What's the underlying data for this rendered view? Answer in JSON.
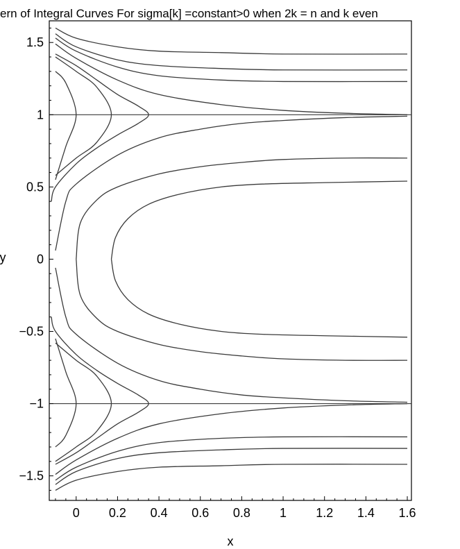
{
  "chart_data": {
    "type": "line",
    "title": "ern of Integral Curves For sigma[k] =constant>0 when 2k =  n and k even",
    "xlabel": "x",
    "ylabel": "y",
    "xlim": [
      -0.13,
      1.62
    ],
    "ylim": [
      -1.67,
      1.65
    ],
    "x_ticks": [
      {
        "value": 0,
        "label": "0"
      },
      {
        "value": 0.2,
        "label": "0.2"
      },
      {
        "value": 0.4,
        "label": "0.4"
      },
      {
        "value": 0.6,
        "label": "0.6"
      },
      {
        "value": 0.8,
        "label": "0.8"
      },
      {
        "value": 1,
        "label": "1"
      },
      {
        "value": 1.2,
        "label": "1.2"
      },
      {
        "value": 1.4,
        "label": "1.4"
      },
      {
        "value": 1.6,
        "label": "1.6"
      }
    ],
    "y_ticks": [
      {
        "value": 1.5,
        "label": "1.5"
      },
      {
        "value": 1,
        "label": "1"
      },
      {
        "value": 0.5,
        "label": "0.5"
      },
      {
        "value": 0,
        "label": "0"
      },
      {
        "value": -0.5,
        "label": "−0.5"
      },
      {
        "value": -1,
        "label": "−1"
      },
      {
        "value": -1.5,
        "label": "−1.5"
      }
    ],
    "horizontal_lines": [
      1,
      -1
    ],
    "line_color": "#3a3a3a",
    "series": [
      {
        "points": [
          [
            -0.1,
            1.6
          ],
          [
            0.0,
            1.53
          ],
          [
            0.2,
            1.47
          ],
          [
            0.4,
            1.44
          ],
          [
            0.7,
            1.43
          ],
          [
            1.0,
            1.42
          ],
          [
            1.6,
            1.42
          ]
        ]
      },
      {
        "points": [
          [
            -0.1,
            1.56
          ],
          [
            0.0,
            1.47
          ],
          [
            0.2,
            1.38
          ],
          [
            0.4,
            1.34
          ],
          [
            0.7,
            1.32
          ],
          [
            1.0,
            1.31
          ],
          [
            1.6,
            1.31
          ]
        ]
      },
      {
        "points": [
          [
            -0.1,
            1.53
          ],
          [
            0.0,
            1.44
          ],
          [
            0.2,
            1.33
          ],
          [
            0.4,
            1.27
          ],
          [
            0.7,
            1.24
          ],
          [
            1.0,
            1.23
          ],
          [
            1.6,
            1.23
          ]
        ]
      },
      {
        "points": [
          [
            -0.1,
            1.49
          ],
          [
            0.0,
            1.39
          ],
          [
            0.2,
            1.24
          ],
          [
            0.4,
            1.14
          ],
          [
            0.7,
            1.07
          ],
          [
            1.0,
            1.03
          ],
          [
            1.3,
            1.01
          ],
          [
            1.6,
            1.0
          ]
        ]
      },
      {
        "points": [
          [
            -0.1,
            1.42
          ],
          [
            0.0,
            1.34
          ],
          [
            0.1,
            1.24
          ],
          [
            0.2,
            1.14
          ],
          [
            0.3,
            1.06
          ],
          [
            0.35,
            1.0
          ],
          [
            0.3,
            0.94
          ],
          [
            0.2,
            0.86
          ],
          [
            0.1,
            0.77
          ],
          [
            0.0,
            0.66
          ],
          [
            -0.1,
            0.5
          ],
          [
            -0.12,
            0.4
          ]
        ]
      },
      {
        "points": [
          [
            -0.1,
            1.4
          ],
          [
            0.0,
            1.3
          ],
          [
            0.1,
            1.19
          ],
          [
            0.17,
            1.0
          ],
          [
            0.1,
            0.81
          ],
          [
            0.0,
            0.7
          ],
          [
            -0.1,
            0.58
          ]
        ]
      },
      {
        "points": [
          [
            -0.1,
            1.3
          ],
          [
            -0.05,
            1.22
          ],
          [
            0.0,
            1.0
          ],
          [
            -0.05,
            0.78
          ],
          [
            -0.1,
            0.55
          ]
        ]
      },
      {
        "points": [
          [
            -0.1,
            0.06
          ],
          [
            -0.05,
            0.4
          ],
          [
            0.0,
            0.52
          ],
          [
            0.2,
            0.72
          ],
          [
            0.4,
            0.84
          ],
          [
            0.6,
            0.9
          ],
          [
            0.8,
            0.94
          ],
          [
            1.0,
            0.96
          ],
          [
            1.3,
            0.98
          ],
          [
            1.6,
            0.99
          ]
        ]
      },
      {
        "points": [
          [
            0.0,
            0.0
          ],
          [
            0.02,
            0.25
          ],
          [
            0.1,
            0.41
          ],
          [
            0.2,
            0.5
          ],
          [
            0.4,
            0.59
          ],
          [
            0.6,
            0.64
          ],
          [
            0.8,
            0.67
          ],
          [
            1.0,
            0.69
          ],
          [
            1.3,
            0.7
          ],
          [
            1.6,
            0.7
          ]
        ]
      },
      {
        "points": [
          [
            0.17,
            0.0
          ],
          [
            0.19,
            0.15
          ],
          [
            0.25,
            0.28
          ],
          [
            0.35,
            0.38
          ],
          [
            0.5,
            0.45
          ],
          [
            0.7,
            0.5
          ],
          [
            0.9,
            0.52
          ],
          [
            1.2,
            0.53
          ],
          [
            1.6,
            0.54
          ]
        ]
      },
      {
        "points": [
          [
            -0.1,
            -0.06
          ],
          [
            -0.05,
            -0.4
          ],
          [
            0.0,
            -0.52
          ],
          [
            0.2,
            -0.72
          ],
          [
            0.4,
            -0.84
          ],
          [
            0.6,
            -0.9
          ],
          [
            0.8,
            -0.94
          ],
          [
            1.0,
            -0.96
          ],
          [
            1.3,
            -0.98
          ],
          [
            1.6,
            -0.99
          ]
        ]
      },
      {
        "points": [
          [
            0.0,
            0.0
          ],
          [
            0.02,
            -0.25
          ],
          [
            0.1,
            -0.41
          ],
          [
            0.2,
            -0.5
          ],
          [
            0.4,
            -0.59
          ],
          [
            0.6,
            -0.64
          ],
          [
            0.8,
            -0.67
          ],
          [
            1.0,
            -0.69
          ],
          [
            1.3,
            -0.7
          ],
          [
            1.6,
            -0.7
          ]
        ]
      },
      {
        "points": [
          [
            0.17,
            0.0
          ],
          [
            0.19,
            -0.15
          ],
          [
            0.25,
            -0.28
          ],
          [
            0.35,
            -0.38
          ],
          [
            0.5,
            -0.45
          ],
          [
            0.7,
            -0.5
          ],
          [
            0.9,
            -0.52
          ],
          [
            1.2,
            -0.53
          ],
          [
            1.6,
            -0.54
          ]
        ]
      },
      {
        "points": [
          [
            -0.1,
            -1.6
          ],
          [
            0.0,
            -1.53
          ],
          [
            0.2,
            -1.47
          ],
          [
            0.4,
            -1.44
          ],
          [
            0.7,
            -1.43
          ],
          [
            1.0,
            -1.42
          ],
          [
            1.6,
            -1.42
          ]
        ]
      },
      {
        "points": [
          [
            -0.1,
            -1.56
          ],
          [
            0.0,
            -1.47
          ],
          [
            0.2,
            -1.38
          ],
          [
            0.4,
            -1.34
          ],
          [
            0.7,
            -1.32
          ],
          [
            1.0,
            -1.31
          ],
          [
            1.6,
            -1.31
          ]
        ]
      },
      {
        "points": [
          [
            -0.1,
            -1.53
          ],
          [
            0.0,
            -1.44
          ],
          [
            0.2,
            -1.33
          ],
          [
            0.4,
            -1.27
          ],
          [
            0.7,
            -1.24
          ],
          [
            1.0,
            -1.23
          ],
          [
            1.6,
            -1.23
          ]
        ]
      },
      {
        "points": [
          [
            -0.1,
            -1.49
          ],
          [
            0.0,
            -1.39
          ],
          [
            0.2,
            -1.24
          ],
          [
            0.4,
            -1.14
          ],
          [
            0.7,
            -1.07
          ],
          [
            1.0,
            -1.03
          ],
          [
            1.3,
            -1.01
          ],
          [
            1.6,
            -1.0
          ]
        ]
      },
      {
        "points": [
          [
            -0.1,
            -1.42
          ],
          [
            0.0,
            -1.34
          ],
          [
            0.1,
            -1.24
          ],
          [
            0.2,
            -1.14
          ],
          [
            0.3,
            -1.06
          ],
          [
            0.35,
            -1.0
          ],
          [
            0.3,
            -0.94
          ],
          [
            0.2,
            -0.86
          ],
          [
            0.1,
            -0.77
          ],
          [
            0.0,
            -0.66
          ],
          [
            -0.1,
            -0.5
          ],
          [
            -0.12,
            -0.4
          ]
        ]
      },
      {
        "points": [
          [
            -0.1,
            -1.4
          ],
          [
            0.0,
            -1.3
          ],
          [
            0.1,
            -1.19
          ],
          [
            0.17,
            -1.0
          ],
          [
            0.1,
            -0.81
          ],
          [
            0.0,
            -0.7
          ],
          [
            -0.1,
            -0.58
          ]
        ]
      },
      {
        "points": [
          [
            -0.1,
            -1.3
          ],
          [
            -0.05,
            -1.22
          ],
          [
            0.0,
            -1.0
          ],
          [
            -0.05,
            -0.78
          ],
          [
            -0.1,
            -0.55
          ]
        ]
      }
    ]
  }
}
